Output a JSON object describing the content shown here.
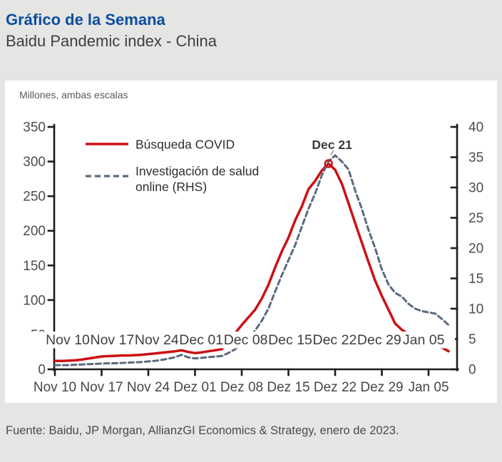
{
  "header": {
    "title": "Gráfico de la Semana",
    "subtitle": "Baidu Pandemic index - China"
  },
  "chart": {
    "units_label": "Millones, ambas escalas",
    "legend": [
      {
        "label": "Búsqueda COVID",
        "style": "solid",
        "color": "#cc1013"
      },
      {
        "label": "Investigación de salud online (RHS)",
        "lines": [
          "Investigación de salud",
          "online (RHS)"
        ],
        "style": "dashed",
        "color": "#5a6a7d"
      }
    ]
  },
  "chart_data": {
    "type": "line",
    "title": "Baidu Pandemic index - China",
    "units": "Millones, ambas escalas",
    "x_start_date": "Nov 10",
    "x_tick_labels_bottom": [
      "Nov 10",
      "Nov 17",
      "Nov 24",
      "Dez 01",
      "Dez 08",
      "Dez 15",
      "Dez 22",
      "Dez 29",
      "Jan 05"
    ],
    "x_overlay_labels": [
      "Nov 10",
      "Nov 17",
      "Nov 24",
      "Dec 01",
      "Dec 08",
      "Dec 15",
      "Dec 22",
      "Dec 29",
      "Jan 05"
    ],
    "left_axis": {
      "min": 0,
      "max": 350,
      "step": 50,
      "tick_labels": [
        "0",
        "50",
        "100",
        "150",
        "200",
        "250",
        "300",
        "350"
      ]
    },
    "right_axis": {
      "min": 0,
      "max": 40,
      "step": 5,
      "tick_labels": [
        "0",
        "5",
        "10",
        "15",
        "20",
        "25",
        "30",
        "35",
        "40"
      ]
    },
    "grid": false,
    "legend_position": "top-left-inside",
    "series": [
      {
        "name": "Búsqueda COVID",
        "axis": "left",
        "color": "#cc1013",
        "style": "solid",
        "values": [
          12,
          12,
          12.5,
          13,
          14,
          15.5,
          17,
          18.5,
          19,
          19.5,
          20,
          20,
          20.5,
          21,
          22,
          23,
          24,
          25,
          26,
          27.5,
          25,
          23.5,
          24.5,
          26,
          27.5,
          29,
          38,
          52,
          64,
          75,
          86,
          102,
          122,
          147,
          170,
          190,
          215,
          235,
          260,
          272,
          287,
          297,
          288,
          268,
          240,
          211,
          183,
          155,
          128,
          106,
          86,
          66,
          57,
          51,
          46,
          42,
          38,
          34,
          31.5,
          26
        ]
      },
      {
        "name": "Investigación de salud online (RHS)",
        "axis": "right",
        "color": "#5a6a7d",
        "style": "dashed",
        "values": [
          0.7,
          0.7,
          0.7,
          0.75,
          0.8,
          0.85,
          0.9,
          0.95,
          1,
          1,
          1.05,
          1.1,
          1.15,
          1.2,
          1.3,
          1.4,
          1.55,
          1.75,
          2,
          2.4,
          1.95,
          1.8,
          1.9,
          2,
          2.1,
          2.2,
          2.7,
          3.3,
          4.2,
          5.2,
          6.4,
          8,
          10,
          12.8,
          15.5,
          18,
          20.5,
          23.5,
          26.5,
          29,
          32,
          34.3,
          35.3,
          34.3,
          33,
          29.5,
          26.5,
          23,
          20,
          16.5,
          14,
          12.6,
          12,
          10.8,
          10,
          9.6,
          9.4,
          9.2,
          8.3,
          7.3
        ]
      }
    ],
    "annotation": {
      "text": "Dec 21",
      "day_index": 41
    },
    "peak_marker": {
      "series": "Búsqueda COVID",
      "day_index": 41,
      "value": 297
    }
  },
  "footer": {
    "source": "Fuente: Baidu, JP Morgan, AllianzGI Economics & Strategy, enero de 2023."
  },
  "colors": {
    "accent_blue": "#0a4ea0",
    "series_red": "#cc1013",
    "series_slate": "#5a6a7d",
    "page_bg": "#e5e5e3",
    "card_bg": "#ffffff",
    "axis": "#1c1c1c",
    "label_gray": "#4c4c4c"
  }
}
